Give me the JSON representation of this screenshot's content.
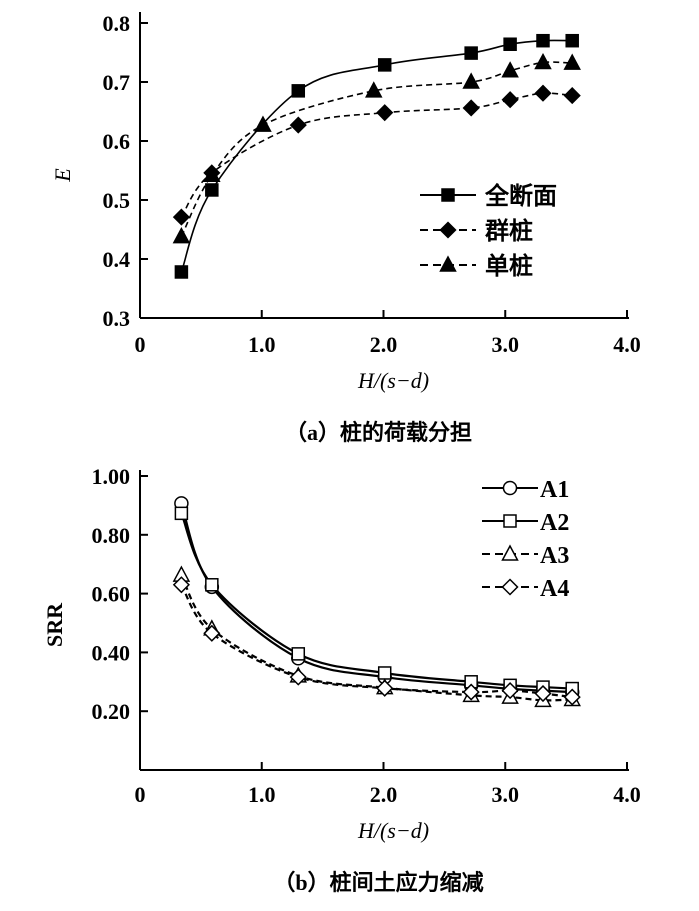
{
  "chart_data": [
    {
      "type": "line",
      "title": "（a）桩的荷载分担",
      "xlabel": "H/(s−d)",
      "ylabel": "E",
      "xlim": [
        0,
        4.0
      ],
      "ylim": [
        0.3,
        0.8
      ],
      "xticks": [
        "0",
        "1.0",
        "2.0",
        "3.0",
        "4.0"
      ],
      "xtick_values": [
        0,
        1,
        2,
        3,
        4
      ],
      "yticks": [
        "0.3",
        "0.4",
        "0.5",
        "0.6",
        "0.7",
        "0.8"
      ],
      "ytick_values": [
        0.3,
        0.4,
        0.5,
        0.6,
        0.7,
        0.8
      ],
      "grid": false,
      "legend_position": "right-middle",
      "series": [
        {
          "name": "全断面",
          "marker": "filled-square",
          "dash": false,
          "x": [
            0.34,
            0.59,
            1.3,
            2.01,
            2.72,
            3.04,
            3.31,
            3.55
          ],
          "y": [
            0.378,
            0.517,
            0.685,
            0.729,
            0.749,
            0.764,
            0.77,
            0.77
          ]
        },
        {
          "name": "群桩",
          "marker": "filled-diamond",
          "dash": true,
          "x": [
            0.34,
            0.59,
            1.3,
            2.01,
            2.72,
            3.04,
            3.31,
            3.55
          ],
          "y": [
            0.471,
            0.546,
            0.627,
            0.648,
            0.656,
            0.67,
            0.681,
            0.677
          ]
        },
        {
          "name": "单桩",
          "marker": "filled-triangle",
          "dash": true,
          "x": [
            0.34,
            0.59,
            1.01,
            1.92,
            2.72,
            3.04,
            3.31,
            3.55
          ],
          "y": [
            0.438,
            0.542,
            0.627,
            0.685,
            0.7,
            0.719,
            0.733,
            0.732
          ]
        }
      ]
    },
    {
      "type": "line",
      "title": "（b）桩间土应力缩减",
      "xlabel": "H/(s−d)",
      "ylabel": "SRR",
      "xlim": [
        0,
        4.0
      ],
      "ylim": [
        0,
        1.0
      ],
      "xticks": [
        "0",
        "1.0",
        "2.0",
        "3.0",
        "4.0"
      ],
      "xtick_values": [
        0,
        1,
        2,
        3,
        4
      ],
      "yticks": [
        "0.20",
        "0.40",
        "0.60",
        "0.80",
        "1.00"
      ],
      "ytick_values": [
        0.2,
        0.4,
        0.6,
        0.8,
        1.0
      ],
      "grid": false,
      "legend_position": "top-right",
      "series": [
        {
          "name": "A1",
          "marker": "open-circle",
          "dash": false,
          "x": [
            0.34,
            0.59,
            1.3,
            2.01,
            2.72,
            3.04,
            3.31,
            3.55
          ],
          "y": [
            0.907,
            0.623,
            0.38,
            0.316,
            0.288,
            0.276,
            0.27,
            0.265
          ]
        },
        {
          "name": "A2",
          "marker": "open-square",
          "dash": false,
          "x": [
            0.34,
            0.59,
            1.3,
            2.01,
            2.72,
            3.04,
            3.31,
            3.55
          ],
          "y": [
            0.873,
            0.63,
            0.395,
            0.33,
            0.3,
            0.288,
            0.282,
            0.277
          ]
        },
        {
          "name": "A3",
          "marker": "open-triangle",
          "dash": true,
          "x": [
            0.34,
            0.59,
            1.3,
            2.01,
            2.72,
            3.04,
            3.31,
            3.55
          ],
          "y": [
            0.663,
            0.48,
            0.32,
            0.28,
            0.254,
            0.248,
            0.237,
            0.24
          ]
        },
        {
          "name": "A4",
          "marker": "open-diamond",
          "dash": true,
          "x": [
            0.34,
            0.59,
            1.3,
            2.01,
            2.72,
            3.04,
            3.31,
            3.55
          ],
          "y": [
            0.63,
            0.465,
            0.316,
            0.278,
            0.265,
            0.27,
            0.26,
            0.248
          ]
        }
      ]
    }
  ]
}
